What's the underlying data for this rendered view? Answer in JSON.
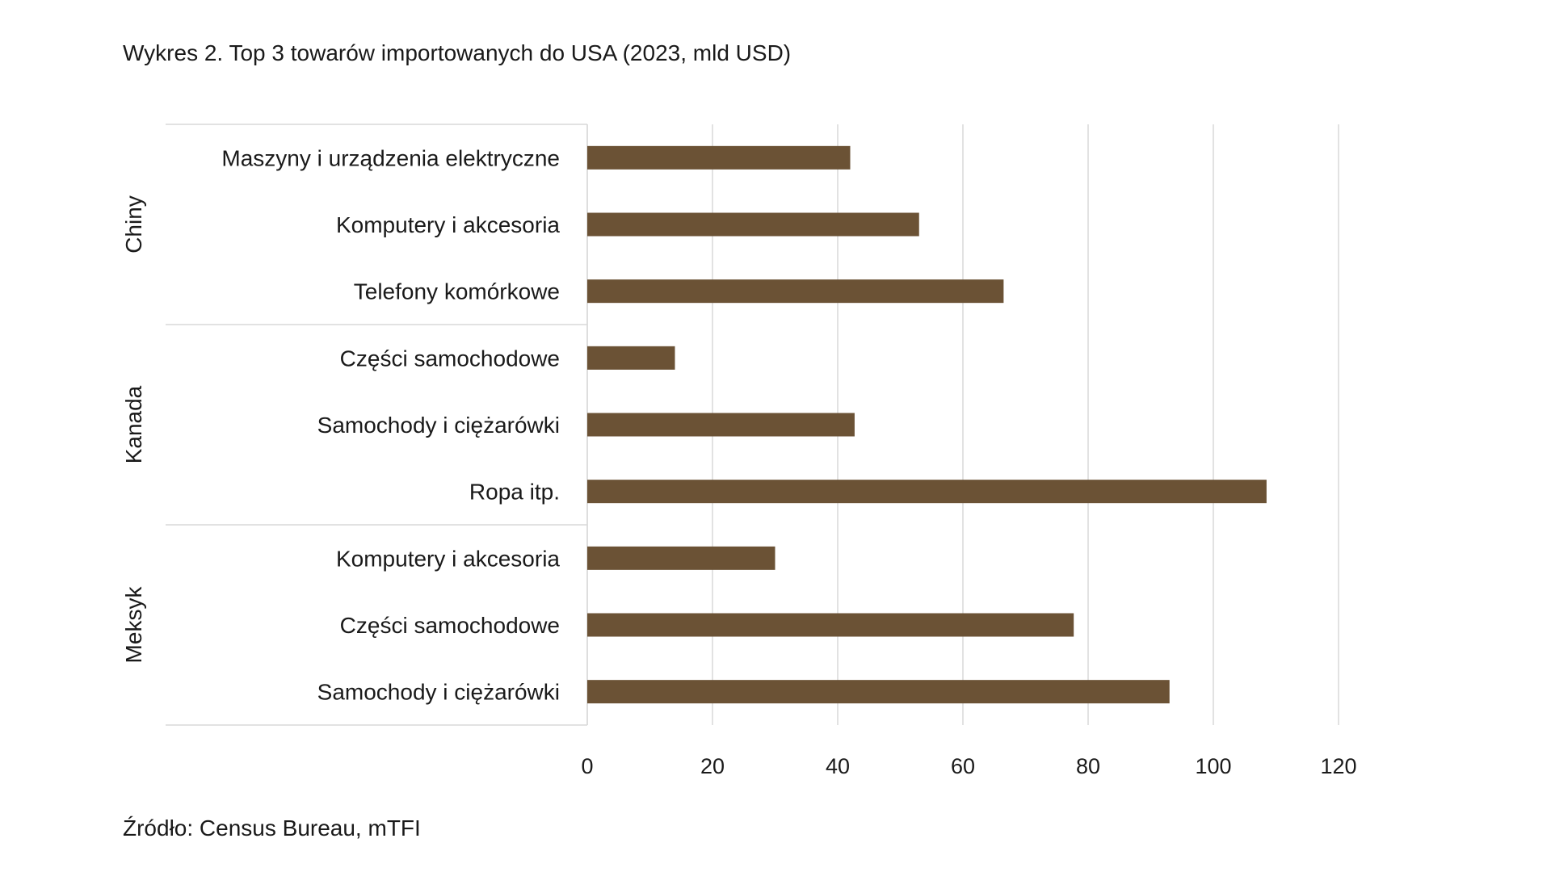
{
  "chart_data": {
    "type": "bar",
    "orientation": "horizontal",
    "title": "Wykres 2. Top 3 towarów importowanych do USA (2023, mld USD)",
    "source": "Źródło: Census Bureau, mTFI",
    "xlim": [
      0,
      120
    ],
    "ticks": [
      0,
      20,
      40,
      60,
      80,
      100,
      120
    ],
    "tick_labels": [
      "0",
      "20",
      "40",
      "60",
      "80",
      "100",
      "120"
    ],
    "bar_color": "#6b5235",
    "grid": true,
    "groups": [
      {
        "name": "Chiny",
        "items": [
          {
            "label": "Maszyny i urządzenia elektryczne",
            "value": 42
          },
          {
            "label": "Komputery i akcesoria",
            "value": 53
          },
          {
            "label": "Telefony komórkowe",
            "value": 66.5
          }
        ]
      },
      {
        "name": "Kanada",
        "items": [
          {
            "label": "Części samochodowe",
            "value": 14
          },
          {
            "label": "Samochody i ciężarówki",
            "value": 42.7
          },
          {
            "label": "Ropa itp.",
            "value": 108.5
          }
        ]
      },
      {
        "name": "Meksyk",
        "items": [
          {
            "label": "Komputery i akcesoria",
            "value": 30
          },
          {
            "label": "Części samochodowe",
            "value": 77.7
          },
          {
            "label": "Samochody i ciężarówki",
            "value": 93
          }
        ]
      }
    ]
  }
}
